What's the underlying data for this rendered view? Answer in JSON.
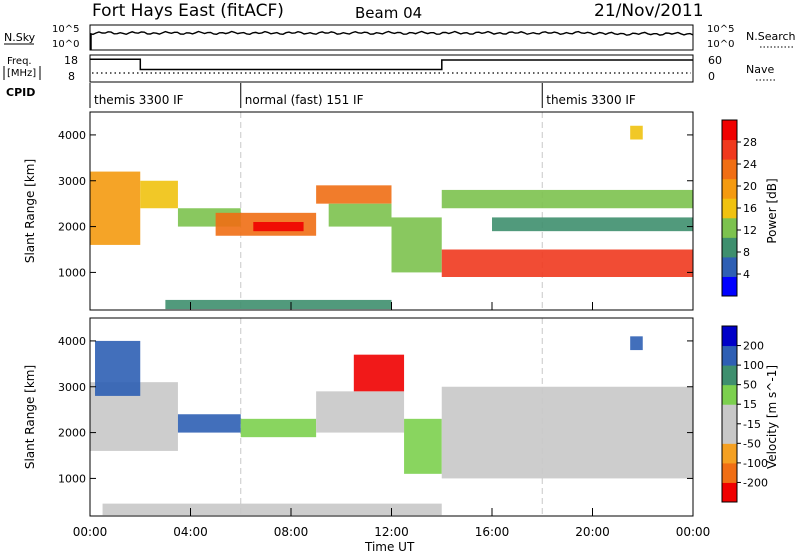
{
  "header": {
    "station": "Fort Hays East (fitACF)",
    "beam": "Beam 04",
    "date": "21/Nov/2011"
  },
  "noise_panel": {
    "left_label": "N.Sky",
    "left_ticks": [
      "10^5",
      "10^0"
    ],
    "right_label": "N.Search",
    "right_ticks": [
      "10^5",
      "10^0"
    ]
  },
  "freq_panel": {
    "left_label_1": "Freq.",
    "left_label_2": "[MHz]",
    "left_ticks": [
      "18",
      "8"
    ],
    "right_label": "Nave",
    "right_ticks": [
      "60",
      "0"
    ],
    "freq_steps": [
      {
        "t0": 0.0,
        "t1": 2.0,
        "freq_mhz": 17.0
      },
      {
        "t0": 2.0,
        "t1": 14.0,
        "freq_mhz": 12.0
      },
      {
        "t0": 14.0,
        "t1": 24.0,
        "freq_mhz": 16.6
      }
    ],
    "nave_level": 20
  },
  "cpid": {
    "label": "CPID",
    "segments": [
      {
        "t0": 0.0,
        "t1": 6.0,
        "name": "themis 3300 IF"
      },
      {
        "t0": 6.0,
        "t1": 18.0,
        "name": "normal (fast) 151 IF"
      },
      {
        "t0": 18.0,
        "t1": 24.0,
        "name": "themis 3300 IF"
      }
    ]
  },
  "colors": {
    "power": [
      "#0000ff",
      "#2e5fb4",
      "#3e8f6e",
      "#7cc24e",
      "#f0c20f",
      "#f49a10",
      "#f06e14",
      "#f0391e",
      "#f00000"
    ],
    "velocity": [
      "#f00000",
      "#f06e14",
      "#f4a022",
      "#c8c8c8",
      "#c8c8c8",
      "#7cd04e",
      "#3e8f6e",
      "#2e5fb4",
      "#0000c8"
    ]
  },
  "chart_data": [
    {
      "type": "heatmap",
      "title": "Power",
      "xlabel": "",
      "ylabel": "Slant Range [km]",
      "xlim": [
        0,
        24
      ],
      "ylim": [
        180,
        4500
      ],
      "y_ticks": [
        "4000",
        "3000",
        "2000",
        "1000"
      ],
      "colorbar_label": "Power [dB]",
      "colorbar_ticks": [
        "28",
        "24",
        "20",
        "16",
        "12",
        "8",
        "4"
      ],
      "colorbar_range": [
        0,
        32
      ],
      "regions": [
        {
          "t0": 0.0,
          "t1": 2.0,
          "r0": 1600,
          "r1": 3200,
          "value": 18
        },
        {
          "t0": 2.0,
          "t1": 3.5,
          "r0": 2400,
          "r1": 3000,
          "value": 16
        },
        {
          "t0": 3.5,
          "t1": 6.0,
          "r0": 2000,
          "r1": 2400,
          "value": 12
        },
        {
          "t0": 5.0,
          "t1": 9.0,
          "r0": 1800,
          "r1": 2300,
          "value": 24
        },
        {
          "t0": 6.5,
          "t1": 8.5,
          "r0": 1900,
          "r1": 2100,
          "value": 30
        },
        {
          "t0": 9.0,
          "t1": 12.0,
          "r0": 2500,
          "r1": 2900,
          "value": 22
        },
        {
          "t0": 9.5,
          "t1": 12.0,
          "r0": 2000,
          "r1": 2500,
          "value": 12
        },
        {
          "t0": 12.0,
          "t1": 14.0,
          "r0": 1000,
          "r1": 2200,
          "value": 14
        },
        {
          "t0": 14.0,
          "t1": 24.0,
          "r0": 900,
          "r1": 1500,
          "value": 26
        },
        {
          "t0": 14.0,
          "t1": 24.0,
          "r0": 2400,
          "r1": 2800,
          "value": 12
        },
        {
          "t0": 16.0,
          "t1": 24.0,
          "r0": 1900,
          "r1": 2200,
          "value": 10
        },
        {
          "t0": 21.5,
          "t1": 22.0,
          "r0": 3900,
          "r1": 4200,
          "value": 16
        },
        {
          "t0": 3.0,
          "t1": 12.0,
          "r0": 200,
          "r1": 400,
          "value": 8
        }
      ]
    },
    {
      "type": "heatmap",
      "title": "Velocity",
      "xlabel": "Time UT",
      "ylabel": "Slant Range [km]",
      "xlim": [
        0,
        24
      ],
      "ylim": [
        180,
        4500
      ],
      "x_ticks": [
        "00:00",
        "04:00",
        "08:00",
        "12:00",
        "16:00",
        "20:00",
        "00:00"
      ],
      "y_ticks": [
        "4000",
        "3000",
        "2000",
        "1000"
      ],
      "colorbar_label": "Velocity [m s^-1]",
      "colorbar_ticks": [
        "200",
        "100",
        "50",
        "15",
        "-15",
        "-50",
        "-100",
        "-200"
      ],
      "colorbar_range": [
        -250,
        250
      ],
      "regions": [
        {
          "t0": 0.0,
          "t1": 3.5,
          "r0": 1600,
          "r1": 3100,
          "value": 0
        },
        {
          "t0": 0.2,
          "t1": 2.0,
          "r0": 2800,
          "r1": 4000,
          "value": 180
        },
        {
          "t0": 3.5,
          "t1": 6.0,
          "r0": 2000,
          "r1": 2400,
          "value": 150
        },
        {
          "t0": 6.0,
          "t1": 9.0,
          "r0": 1900,
          "r1": 2300,
          "value": 40
        },
        {
          "t0": 9.0,
          "t1": 12.5,
          "r0": 2000,
          "r1": 2900,
          "value": 0
        },
        {
          "t0": 10.5,
          "t1": 12.5,
          "r0": 2900,
          "r1": 3700,
          "value": -220
        },
        {
          "t0": 12.5,
          "t1": 14.0,
          "r0": 1100,
          "r1": 2300,
          "value": 40
        },
        {
          "t0": 14.0,
          "t1": 24.0,
          "r0": 1000,
          "r1": 3000,
          "value": 0
        },
        {
          "t0": 0.5,
          "t1": 14.0,
          "r0": 200,
          "r1": 450,
          "value": -70
        },
        {
          "t0": 21.5,
          "t1": 22.0,
          "r0": 3800,
          "r1": 4100,
          "value": 180
        }
      ]
    }
  ]
}
